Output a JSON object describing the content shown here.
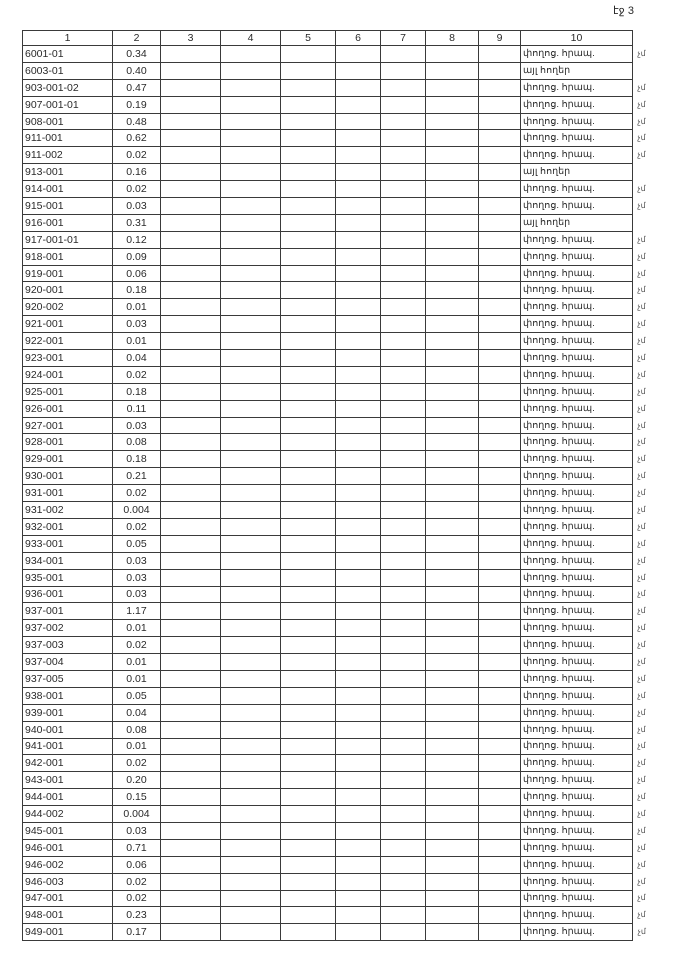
{
  "page_label": "էջ 3",
  "columns": [
    "1",
    "2",
    "3",
    "4",
    "5",
    "6",
    "7",
    "8",
    "9",
    "10"
  ],
  "rows": [
    {
      "code": "6001-01",
      "area": "0.34",
      "purpose": "փողոց. հրապ.",
      "mark": "չմ"
    },
    {
      "code": "6003-01",
      "area": "0.40",
      "purpose": "այլ հողեր",
      "mark": ""
    },
    {
      "code": "903-001-02",
      "area": "0.47",
      "purpose": "փողոց. հրապ.",
      "mark": "չմ"
    },
    {
      "code": "907-001-01",
      "area": "0.19",
      "purpose": "փողոց. հրապ.",
      "mark": "չմ"
    },
    {
      "code": "908-001",
      "area": "0.48",
      "purpose": "փողոց. հրապ.",
      "mark": "չմ"
    },
    {
      "code": "911-001",
      "area": "0.62",
      "purpose": "փողոց. հրապ.",
      "mark": "չմ"
    },
    {
      "code": "911-002",
      "area": "0.02",
      "purpose": "փողոց. հրապ.",
      "mark": "չմ"
    },
    {
      "code": "913-001",
      "area": "0.16",
      "purpose": "այլ հողեր",
      "mark": ""
    },
    {
      "code": "914-001",
      "area": "0.02",
      "purpose": "փողոց. հրապ.",
      "mark": "չմ"
    },
    {
      "code": "915-001",
      "area": "0.03",
      "purpose": "փողոց. հրապ.",
      "mark": "չմ"
    },
    {
      "code": "916-001",
      "area": "0.31",
      "purpose": "այլ հողեր",
      "mark": ""
    },
    {
      "code": "917-001-01",
      "area": "0.12",
      "purpose": "փողոց. հրապ.",
      "mark": "չմ"
    },
    {
      "code": "918-001",
      "area": "0.09",
      "purpose": "փողոց. հրապ.",
      "mark": "չմ"
    },
    {
      "code": "919-001",
      "area": "0.06",
      "purpose": "փողոց. հրապ.",
      "mark": "չմ"
    },
    {
      "code": "920-001",
      "area": "0.18",
      "purpose": "փողոց. հրապ.",
      "mark": "չմ"
    },
    {
      "code": "920-002",
      "area": "0.01",
      "purpose": "փողոց. հրապ.",
      "mark": "չմ"
    },
    {
      "code": "921-001",
      "area": "0.03",
      "purpose": "փողոց. հրապ.",
      "mark": "չմ"
    },
    {
      "code": "922-001",
      "area": "0.01",
      "purpose": "փողոց. հրապ.",
      "mark": "չմ"
    },
    {
      "code": "923-001",
      "area": "0.04",
      "purpose": "փողոց. հրապ.",
      "mark": "չմ"
    },
    {
      "code": "924-001",
      "area": "0.02",
      "purpose": "փողոց. հրապ.",
      "mark": "չմ"
    },
    {
      "code": "925-001",
      "area": "0.18",
      "purpose": "փողոց. հրապ.",
      "mark": "չմ"
    },
    {
      "code": "926-001",
      "area": "0.11",
      "purpose": "փողոց. հրապ.",
      "mark": "չմ"
    },
    {
      "code": "927-001",
      "area": "0.03",
      "purpose": "փողոց. հրապ.",
      "mark": "չմ"
    },
    {
      "code": "928-001",
      "area": "0.08",
      "purpose": "փողոց. հրապ.",
      "mark": "չմ"
    },
    {
      "code": "929-001",
      "area": "0.18",
      "purpose": "փողոց. հրապ.",
      "mark": "չմ"
    },
    {
      "code": "930-001",
      "area": "0.21",
      "purpose": "փողոց. հրապ.",
      "mark": "չմ"
    },
    {
      "code": "931-001",
      "area": "0.02",
      "purpose": "փողոց. հրապ.",
      "mark": "չմ"
    },
    {
      "code": "931-002",
      "area": "0.004",
      "purpose": "փողոց. հրապ.",
      "mark": "չմ"
    },
    {
      "code": "932-001",
      "area": "0.02",
      "purpose": "փողոց. հրապ.",
      "mark": "չմ"
    },
    {
      "code": "933-001",
      "area": "0.05",
      "purpose": "փողոց. հրապ.",
      "mark": "չմ"
    },
    {
      "code": "934-001",
      "area": "0.03",
      "purpose": "փողոց. հրապ.",
      "mark": "չմ"
    },
    {
      "code": "935-001",
      "area": "0.03",
      "purpose": "փողոց. հրապ.",
      "mark": "չմ"
    },
    {
      "code": "936-001",
      "area": "0.03",
      "purpose": "փողոց. հրապ.",
      "mark": "չմ"
    },
    {
      "code": "937-001",
      "area": "1.17",
      "purpose": "փողոց. հրապ.",
      "mark": "չմ"
    },
    {
      "code": "937-002",
      "area": "0.01",
      "purpose": "փողոց. հրապ.",
      "mark": "չմ"
    },
    {
      "code": "937-003",
      "area": "0.02",
      "purpose": "փողոց. հրապ.",
      "mark": "չմ"
    },
    {
      "code": "937-004",
      "area": "0.01",
      "purpose": "փողոց. հրապ.",
      "mark": "չմ"
    },
    {
      "code": "937-005",
      "area": "0.01",
      "purpose": "փողոց. հրապ.",
      "mark": "չմ"
    },
    {
      "code": "938-001",
      "area": "0.05",
      "purpose": "փողոց. հրապ.",
      "mark": "չմ"
    },
    {
      "code": "939-001",
      "area": "0.04",
      "purpose": "փողոց. հրապ.",
      "mark": "չմ"
    },
    {
      "code": "940-001",
      "area": "0.08",
      "purpose": "փողոց. հրապ.",
      "mark": "չմ"
    },
    {
      "code": "941-001",
      "area": "0.01",
      "purpose": "փողոց. հրապ.",
      "mark": "չմ"
    },
    {
      "code": "942-001",
      "area": "0.02",
      "purpose": "փողոց. հրապ.",
      "mark": "չմ"
    },
    {
      "code": "943-001",
      "area": "0.20",
      "purpose": "փողոց. հրապ.",
      "mark": "չմ"
    },
    {
      "code": "944-001",
      "area": "0.15",
      "purpose": "փողոց. հրապ.",
      "mark": "չմ"
    },
    {
      "code": "944-002",
      "area": "0.004",
      "purpose": "փողոց. հրապ.",
      "mark": "չմ"
    },
    {
      "code": "945-001",
      "area": "0.03",
      "purpose": "փողոց. հրապ.",
      "mark": "չմ"
    },
    {
      "code": "946-001",
      "area": "0.71",
      "purpose": "փողոց. հրապ.",
      "mark": "չմ"
    },
    {
      "code": "946-002",
      "area": "0.06",
      "purpose": "փողոց. հրապ.",
      "mark": "չմ"
    },
    {
      "code": "946-003",
      "area": "0.02",
      "purpose": "փողոց. հրապ.",
      "mark": "չմ"
    },
    {
      "code": "947-001",
      "area": "0.02",
      "purpose": "փողոց. հրապ.",
      "mark": "չմ"
    },
    {
      "code": "948-001",
      "area": "0.23",
      "purpose": "փողոց. հրապ.",
      "mark": "չմ"
    },
    {
      "code": "949-001",
      "area": "0.17",
      "purpose": "փողոց. հրապ.",
      "mark": "չմ"
    }
  ]
}
